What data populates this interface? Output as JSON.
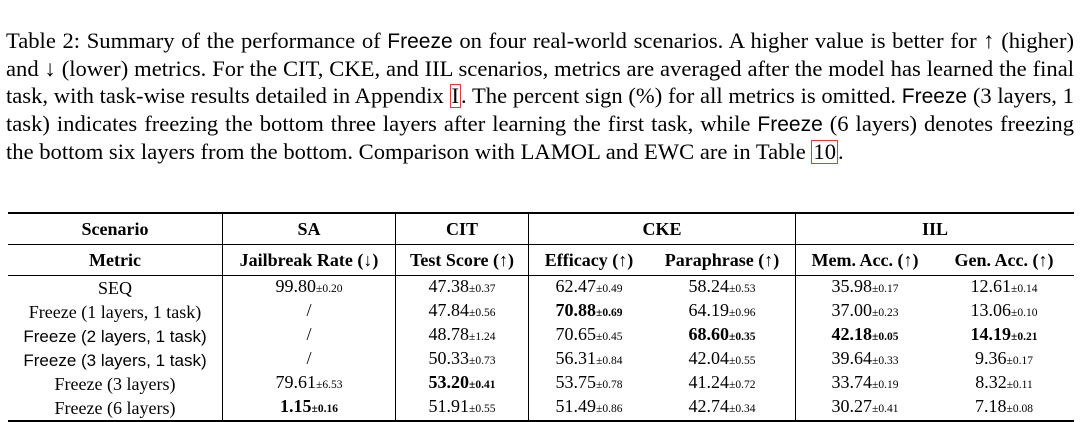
{
  "caption": {
    "p1": "Table 2: Summary of the performance of ",
    "method": "Freeze",
    "p2": " on four real-world scenarios. A higher value is better for ↑ (higher) and ↓ (lower) metrics. For the CIT, CKE, and IIL scenarios, metrics are averaged after the model has learned the final task, with task-wise results detailed in Appendix ",
    "ref_appendix": "I",
    "p3": ". The percent sign (%) for all metrics is omitted. ",
    "p4": " (3 layers, 1 task) indicates freezing the bottom three layers after learning the first task, while ",
    "p5": " (6 layers) denotes freezing the bottom six layers from the bottom. Comparison with LAMOL and EWC are in Table ",
    "ref_table": "10",
    "p6": "."
  },
  "table": {
    "scenario_label": "Scenario",
    "metric_label": "Metric",
    "scenarios": [
      "SA",
      "CIT",
      "CKE",
      "IIL"
    ],
    "metrics": [
      "Jailbreak Rate (↓)",
      "Test Score (↑)",
      "Efficacy (↑)",
      "Paraphrase (↑)",
      "Mem. Acc. (↑)",
      "Gen. Acc. (↑)"
    ],
    "rows": [
      {
        "method": "SEQ",
        "cells": [
          {
            "v": "99.80",
            "s": "±0.20"
          },
          {
            "v": "47.38",
            "s": "±0.37"
          },
          {
            "v": "62.47",
            "s": "±0.49"
          },
          {
            "v": "58.24",
            "s": "±0.53"
          },
          {
            "v": "35.98",
            "s": "±0.17"
          },
          {
            "v": "12.61",
            "s": "±0.14"
          }
        ]
      },
      {
        "method": "Freeze (1 layers, 1 task)",
        "cells": [
          {
            "v": "/",
            "s": ""
          },
          {
            "v": "47.84",
            "s": "±0.56"
          },
          {
            "v": "70.88",
            "s": "±0.69"
          },
          {
            "v": "64.19",
            "s": "±0.96"
          },
          {
            "v": "37.00",
            "s": "±0.23"
          },
          {
            "v": "13.06",
            "s": "±0.10"
          }
        ]
      },
      {
        "method": "Freeze (2 layers, 1 task)",
        "cells": [
          {
            "v": "/",
            "s": ""
          },
          {
            "v": "48.78",
            "s": "±1.24"
          },
          {
            "v": "70.65",
            "s": "±0.45"
          },
          {
            "v": "68.60",
            "s": "±0.35"
          },
          {
            "v": "42.18",
            "s": "±0.05"
          },
          {
            "v": "14.19",
            "s": "±0.21"
          }
        ]
      },
      {
        "method": "Freeze (3 layers, 1 task)",
        "cells": [
          {
            "v": "/",
            "s": ""
          },
          {
            "v": "50.33",
            "s": "±0.73"
          },
          {
            "v": "56.31",
            "s": "±0.84"
          },
          {
            "v": "42.04",
            "s": "±0.55"
          },
          {
            "v": "39.64",
            "s": "±0.33"
          },
          {
            "v": "9.36",
            "s": "±0.17"
          }
        ]
      },
      {
        "method": "Freeze (3 layers)",
        "cells": [
          {
            "v": "79.61",
            "s": "±6.53"
          },
          {
            "v": "53.20",
            "s": "±0.41"
          },
          {
            "v": "53.75",
            "s": "±0.78"
          },
          {
            "v": "41.24",
            "s": "±0.72"
          },
          {
            "v": "33.74",
            "s": "±0.19"
          },
          {
            "v": "8.32",
            "s": "±0.11"
          }
        ]
      },
      {
        "method": "Freeze (6 layers)",
        "cells": [
          {
            "v": "1.15",
            "s": "±0.16"
          },
          {
            "v": "51.91",
            "s": "±0.55"
          },
          {
            "v": "51.49",
            "s": "±0.86"
          },
          {
            "v": "42.74",
            "s": "±0.34"
          },
          {
            "v": "30.27",
            "s": "±0.41"
          },
          {
            "v": "7.18",
            "s": "±0.08"
          }
        ]
      }
    ]
  }
}
